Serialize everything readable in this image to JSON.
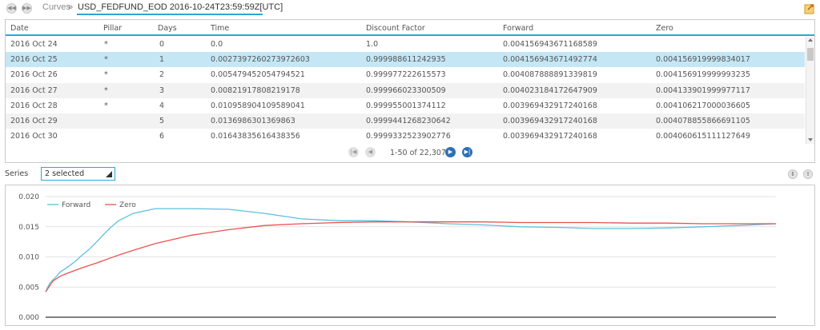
{
  "toolbar": {
    "back_icon": "rewind-icon",
    "forward_icon": "fast-forward-icon",
    "breadcrumb_root": "Curves",
    "breadcrumb_sep": "»",
    "breadcrumb_current": "USD_FEDFUND_EOD 2016-10-24T23:59:59Z[UTC]",
    "export_icon": "export-icon"
  },
  "table": {
    "columns": [
      "Date",
      "Pillar",
      "Days",
      "Time",
      "Discount Factor",
      "Forward",
      "Zero"
    ],
    "rows": [
      [
        "2016 Oct 24",
        "*",
        "0",
        "0.0",
        "1.0",
        "0.004156943671168589",
        ""
      ],
      [
        "2016 Oct 25",
        "*",
        "1",
        "0.0027397260273972603",
        "0.999988611242935",
        "0.004156943671492774",
        "0.004156919999834017"
      ],
      [
        "2016 Oct 26",
        "*",
        "2",
        "0.005479452054794521",
        "0.999977222615573",
        "0.004087888891339819",
        "0.004156919999993235"
      ],
      [
        "2016 Oct 27",
        "*",
        "3",
        "0.00821917808219178",
        "0.999966023300509",
        "0.004023184172647909",
        "0.004133901999977117"
      ],
      [
        "2016 Oct 28",
        "*",
        "4",
        "0.010958904109589041",
        "0.999955001374112",
        "0.003969432917240168",
        "0.004106217000036605"
      ],
      [
        "2016 Oct 29",
        "",
        "5",
        "0.0136986301369863",
        "0.9999441268230642",
        "0.003969432917240168",
        "0.004078855866691105"
      ],
      [
        "2016 Oct 30",
        "",
        "6",
        "0.01643835616438356",
        "0.9999332523902776",
        "0.003969432917240168",
        "0.004060615111127649"
      ]
    ],
    "selected_row": 1,
    "pager_text": "1-50 of 22,307"
  },
  "series": {
    "label": "Series",
    "selected_value": "2 selected",
    "expand_icon": "expand-all-icon",
    "collapse_icon": "collapse-all-icon"
  },
  "colors": {
    "accent": "#2aa7d5",
    "forward": "#5bc0de",
    "zero": "#e8524f",
    "selected_row": "#c5e7f5"
  },
  "chart_data": {
    "type": "line",
    "ylim": [
      0,
      0.02
    ],
    "yticks": [
      "0.000",
      "0.005",
      "0.010",
      "0.015",
      "0.020"
    ],
    "grid": true,
    "legend_placement": "top-left",
    "series": [
      {
        "name": "Forward",
        "color": "#5bc0de",
        "x": [
          0,
          0.5,
          1,
          1.5,
          2,
          3,
          4,
          5,
          6,
          7,
          8,
          9,
          10,
          12,
          15,
          20,
          25,
          30,
          35,
          40,
          45,
          50,
          55,
          60,
          65,
          70,
          75,
          80,
          85,
          90,
          95,
          100
        ],
        "values": [
          0.0042,
          0.0055,
          0.0062,
          0.0068,
          0.0075,
          0.0083,
          0.0092,
          0.0103,
          0.0113,
          0.0125,
          0.0138,
          0.015,
          0.016,
          0.0172,
          0.018,
          0.018,
          0.0179,
          0.0172,
          0.0163,
          0.016,
          0.016,
          0.0158,
          0.0155,
          0.0153,
          0.015,
          0.0149,
          0.0147,
          0.0147,
          0.0148,
          0.015,
          0.0152,
          0.0155
        ]
      },
      {
        "name": "Zero",
        "color": "#e8524f",
        "x": [
          0,
          1,
          2,
          3,
          5,
          7,
          10,
          12,
          15,
          20,
          25,
          30,
          35,
          40,
          45,
          50,
          55,
          60,
          65,
          70,
          75,
          80,
          85,
          90,
          95,
          100
        ],
        "values": [
          0.0042,
          0.006,
          0.0068,
          0.0073,
          0.0082,
          0.009,
          0.0103,
          0.0111,
          0.0122,
          0.0136,
          0.0145,
          0.0152,
          0.0155,
          0.0157,
          0.0158,
          0.0158,
          0.0158,
          0.0158,
          0.0157,
          0.0157,
          0.0157,
          0.0156,
          0.0156,
          0.0155,
          0.0155,
          0.0155
        ]
      }
    ]
  }
}
